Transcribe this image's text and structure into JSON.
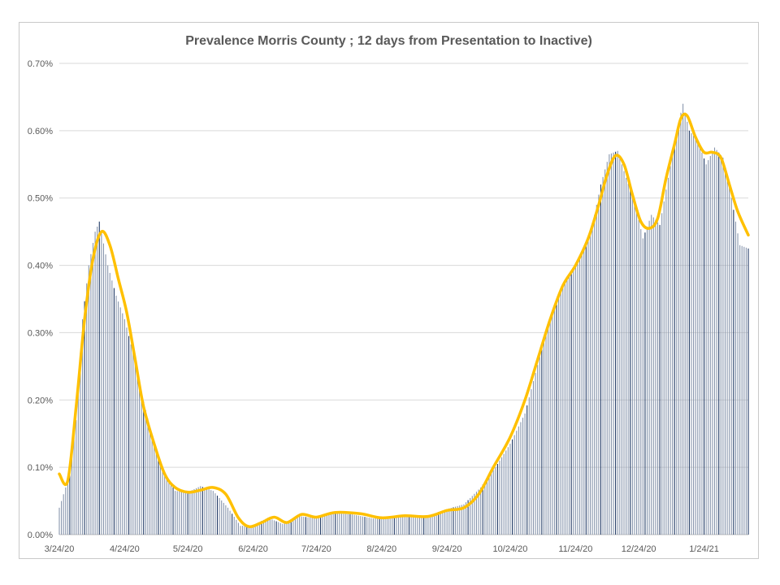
{
  "chart_data": {
    "type": "bar",
    "title": "Prevalence Morris County ; 12 days from Presentation to Inactive)",
    "xlabel": "",
    "ylabel": "",
    "ylim": [
      0,
      0.7
    ],
    "y_unit": "%",
    "y_ticks": [
      "0.00%",
      "0.10%",
      "0.20%",
      "0.30%",
      "0.40%",
      "0.50%",
      "0.60%",
      "0.70%"
    ],
    "y_tick_values": [
      0,
      0.1,
      0.2,
      0.3,
      0.4,
      0.5,
      0.6,
      0.7
    ],
    "x_ticks": [
      "3/24/20",
      "4/24/20",
      "5/24/20",
      "6/24/20",
      "7/24/20",
      "8/24/20",
      "9/24/20",
      "10/24/20",
      "11/24/20",
      "12/24/20",
      "1/24/21"
    ],
    "x_tick_dates": [
      "2020-03-24",
      "2020-04-24",
      "2020-05-24",
      "2020-06-24",
      "2020-07-24",
      "2020-08-24",
      "2020-09-24",
      "2020-10-24",
      "2020-11-24",
      "2020-12-24",
      "2021-01-24"
    ],
    "x_range": [
      "2020-03-24",
      "2021-02-14"
    ],
    "grid": true,
    "legend": "none",
    "colors": {
      "bar": "#8896ad",
      "bar_dark": "#1f3864",
      "line": "#ffc000",
      "grid": "#d9d9d9"
    },
    "series": [
      {
        "type": "bar",
        "points": [
          [
            "2020-03-24",
            0.04
          ],
          [
            "2020-03-28",
            0.08
          ],
          [
            "2020-04-01",
            0.17
          ],
          [
            "2020-04-04",
            0.32
          ],
          [
            "2020-04-07",
            0.4
          ],
          [
            "2020-04-10",
            0.45
          ],
          [
            "2020-04-12",
            0.465
          ],
          [
            "2020-04-16",
            0.4
          ],
          [
            "2020-04-20",
            0.355
          ],
          [
            "2020-04-24",
            0.32
          ],
          [
            "2020-04-28",
            0.27
          ],
          [
            "2020-05-02",
            0.21
          ],
          [
            "2020-05-06",
            0.16
          ],
          [
            "2020-05-10",
            0.115
          ],
          [
            "2020-05-14",
            0.085
          ],
          [
            "2020-05-18",
            0.065
          ],
          [
            "2020-05-24",
            0.063
          ],
          [
            "2020-05-30",
            0.072
          ],
          [
            "2020-06-05",
            0.065
          ],
          [
            "2020-06-12",
            0.04
          ],
          [
            "2020-06-18",
            0.013
          ],
          [
            "2020-06-24",
            0.014
          ],
          [
            "2020-07-01",
            0.025
          ],
          [
            "2020-07-08",
            0.016
          ],
          [
            "2020-07-15",
            0.028
          ],
          [
            "2020-07-24",
            0.024
          ],
          [
            "2020-08-01",
            0.032
          ],
          [
            "2020-08-10",
            0.03
          ],
          [
            "2020-08-20",
            0.024
          ],
          [
            "2020-09-01",
            0.027
          ],
          [
            "2020-09-12",
            0.025
          ],
          [
            "2020-09-24",
            0.038
          ],
          [
            "2020-10-02",
            0.045
          ],
          [
            "2020-10-10",
            0.07
          ],
          [
            "2020-10-17",
            0.1
          ],
          [
            "2020-10-24",
            0.135
          ],
          [
            "2020-10-31",
            0.18
          ],
          [
            "2020-11-05",
            0.24
          ],
          [
            "2020-11-10",
            0.3
          ],
          [
            "2020-11-15",
            0.35
          ],
          [
            "2020-11-20",
            0.38
          ],
          [
            "2020-11-24",
            0.4
          ],
          [
            "2020-11-28",
            0.425
          ],
          [
            "2020-12-02",
            0.46
          ],
          [
            "2020-12-06",
            0.52
          ],
          [
            "2020-12-10",
            0.565
          ],
          [
            "2020-12-14",
            0.57
          ],
          [
            "2020-12-18",
            0.53
          ],
          [
            "2020-12-22",
            0.495
          ],
          [
            "2020-12-26",
            0.44
          ],
          [
            "2020-12-30",
            0.475
          ],
          [
            "2021-01-03",
            0.46
          ],
          [
            "2021-01-07",
            0.53
          ],
          [
            "2021-01-11",
            0.6
          ],
          [
            "2021-01-14",
            0.64
          ],
          [
            "2021-01-17",
            0.6
          ],
          [
            "2021-01-21",
            0.585
          ],
          [
            "2021-01-25",
            0.55
          ],
          [
            "2021-01-29",
            0.575
          ],
          [
            "2021-02-02",
            0.56
          ],
          [
            "2021-02-06",
            0.5
          ],
          [
            "2021-02-10",
            0.43
          ],
          [
            "2021-02-14",
            0.425
          ]
        ]
      },
      {
        "type": "line",
        "points": [
          [
            "2020-03-24",
            0.09
          ],
          [
            "2020-03-28",
            0.08
          ],
          [
            "2020-04-01",
            0.19
          ],
          [
            "2020-04-05",
            0.32
          ],
          [
            "2020-04-09",
            0.41
          ],
          [
            "2020-04-13",
            0.45
          ],
          [
            "2020-04-17",
            0.43
          ],
          [
            "2020-04-21",
            0.38
          ],
          [
            "2020-04-25",
            0.33
          ],
          [
            "2020-04-29",
            0.26
          ],
          [
            "2020-05-03",
            0.19
          ],
          [
            "2020-05-08",
            0.135
          ],
          [
            "2020-05-13",
            0.09
          ],
          [
            "2020-05-18",
            0.07
          ],
          [
            "2020-05-24",
            0.063
          ],
          [
            "2020-05-30",
            0.066
          ],
          [
            "2020-06-05",
            0.07
          ],
          [
            "2020-06-11",
            0.06
          ],
          [
            "2020-06-17",
            0.025
          ],
          [
            "2020-06-22",
            0.012
          ],
          [
            "2020-06-28",
            0.018
          ],
          [
            "2020-07-04",
            0.026
          ],
          [
            "2020-07-10",
            0.018
          ],
          [
            "2020-07-17",
            0.03
          ],
          [
            "2020-07-24",
            0.026
          ],
          [
            "2020-08-02",
            0.033
          ],
          [
            "2020-08-14",
            0.031
          ],
          [
            "2020-08-24",
            0.025
          ],
          [
            "2020-09-04",
            0.028
          ],
          [
            "2020-09-15",
            0.027
          ],
          [
            "2020-09-24",
            0.036
          ],
          [
            "2020-10-02",
            0.04
          ],
          [
            "2020-10-09",
            0.06
          ],
          [
            "2020-10-16",
            0.1
          ],
          [
            "2020-10-24",
            0.145
          ],
          [
            "2020-10-31",
            0.2
          ],
          [
            "2020-11-06",
            0.26
          ],
          [
            "2020-11-12",
            0.32
          ],
          [
            "2020-11-18",
            0.37
          ],
          [
            "2020-11-24",
            0.4
          ],
          [
            "2020-11-30",
            0.44
          ],
          [
            "2020-12-05",
            0.49
          ],
          [
            "2020-12-09",
            0.535
          ],
          [
            "2020-12-13",
            0.563
          ],
          [
            "2020-12-17",
            0.55
          ],
          [
            "2020-12-21",
            0.505
          ],
          [
            "2020-12-25",
            0.465
          ],
          [
            "2020-12-29",
            0.455
          ],
          [
            "2021-01-02",
            0.47
          ],
          [
            "2021-01-06",
            0.53
          ],
          [
            "2021-01-10",
            0.58
          ],
          [
            "2021-01-13",
            0.618
          ],
          [
            "2021-01-16",
            0.622
          ],
          [
            "2021-01-20",
            0.59
          ],
          [
            "2021-01-24",
            0.568
          ],
          [
            "2021-01-28",
            0.568
          ],
          [
            "2021-02-01",
            0.56
          ],
          [
            "2021-02-05",
            0.52
          ],
          [
            "2021-02-09",
            0.48
          ],
          [
            "2021-02-14",
            0.445
          ]
        ]
      }
    ]
  }
}
